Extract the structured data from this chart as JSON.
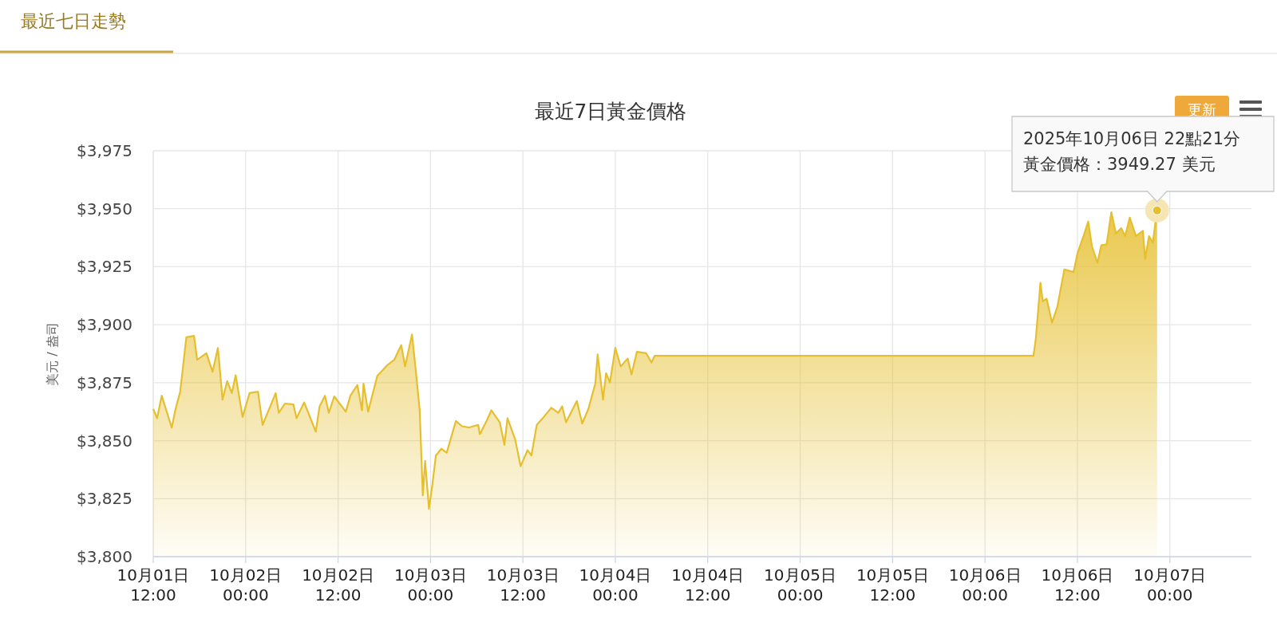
{
  "chart_data": {
    "type": "area",
    "title": "最近7日黃金價格",
    "ylabel": "美元 / 盎司",
    "annotations": [
      "最近七日走勢",
      "更新",
      "2025年10月06日 22點21分",
      "黃金價格：3949.27 美元"
    ],
    "xlim": [
      "2025-10-01T12:00",
      "2025-10-07T10:36"
    ],
    "xticks": [
      {
        "value": "2025-10-01T12:00",
        "label": "10月01日\n12:00"
      },
      {
        "value": "2025-10-02T00:00",
        "label": "10月02日\n00:00"
      },
      {
        "value": "2025-10-02T12:00",
        "label": "10月02日\n12:00"
      },
      {
        "value": "2025-10-03T00:00",
        "label": "10月03日\n00:00"
      },
      {
        "value": "2025-10-03T12:00",
        "label": "10月03日\n12:00"
      },
      {
        "value": "2025-10-04T00:00",
        "label": "10月04日\n00:00"
      },
      {
        "value": "2025-10-04T12:00",
        "label": "10月04日\n12:00"
      },
      {
        "value": "2025-10-05T00:00",
        "label": "10月05日\n00:00"
      },
      {
        "value": "2025-10-05T12:00",
        "label": "10月05日\n12:00"
      },
      {
        "value": "2025-10-06T00:00",
        "label": "10月06日\n00:00"
      },
      {
        "value": "2025-10-06T12:00",
        "label": "10月06日\n12:00"
      },
      {
        "value": "2025-10-07T00:00",
        "label": "10月07日\n00:00"
      }
    ],
    "ylim": [
      3800,
      3975
    ],
    "yticks": [
      {
        "value": 3800,
        "label": "$3,800"
      },
      {
        "value": 3825,
        "label": "$3,825"
      },
      {
        "value": 3850,
        "label": "$3,850"
      },
      {
        "value": 3875,
        "label": "$3,875"
      },
      {
        "value": 3900,
        "label": "$3,900"
      },
      {
        "value": 3925,
        "label": "$3,925"
      },
      {
        "value": 3950,
        "label": "$3,950"
      },
      {
        "value": 3975,
        "label": "$3,975"
      }
    ],
    "grid": true,
    "marker": "none",
    "series": [
      {
        "color": "#e6bf2e",
        "x": [
          "2025-10-01T12:00",
          "2025-10-01T12:30",
          "2025-10-01T13:06",
          "2025-10-01T14:24",
          "2025-10-01T14:54",
          "2025-10-01T15:30",
          "2025-10-01T16:18",
          "2025-10-01T17:18",
          "2025-10-01T17:42",
          "2025-10-01T18:54",
          "2025-10-01T19:42",
          "2025-10-01T20:24",
          "2025-10-01T21:00",
          "2025-10-01T21:36",
          "2025-10-01T22:12",
          "2025-10-01T22:42",
          "2025-10-01T23:36",
          "2025-10-02T00:30",
          "2025-10-02T01:36",
          "2025-10-02T02:12",
          "2025-10-02T03:54",
          "2025-10-02T04:18",
          "2025-10-02T05:06",
          "2025-10-02T06:12",
          "2025-10-02T06:36",
          "2025-10-02T07:36",
          "2025-10-02T09:06",
          "2025-10-02T09:36",
          "2025-10-02T10:18",
          "2025-10-02T10:48",
          "2025-10-02T11:30",
          "2025-10-02T12:12",
          "2025-10-02T13:00",
          "2025-10-02T13:36",
          "2025-10-02T14:30",
          "2025-10-02T15:06",
          "2025-10-02T15:18",
          "2025-10-02T15:54",
          "2025-10-02T17:06",
          "2025-10-02T18:24",
          "2025-10-02T19:18",
          "2025-10-02T20:12",
          "2025-10-02T20:42",
          "2025-10-02T21:36",
          "2025-10-02T22:00",
          "2025-10-02T22:36",
          "2025-10-02T23:00",
          "2025-10-02T23:18",
          "2025-10-02T23:48",
          "2025-10-03T00:12",
          "2025-10-03T00:42",
          "2025-10-03T01:24",
          "2025-10-03T02:06",
          "2025-10-03T03:18",
          "2025-10-03T04:06",
          "2025-10-03T05:00",
          "2025-10-03T06:12",
          "2025-10-03T06:24",
          "2025-10-03T07:12",
          "2025-10-03T07:54",
          "2025-10-03T09:00",
          "2025-10-03T09:36",
          "2025-10-03T10:00",
          "2025-10-03T11:00",
          "2025-10-03T11:42",
          "2025-10-03T12:36",
          "2025-10-03T13:06",
          "2025-10-03T13:48",
          "2025-10-03T14:42",
          "2025-10-03T15:42",
          "2025-10-03T16:36",
          "2025-10-03T17:06",
          "2025-10-03T17:36",
          "2025-10-03T19:00",
          "2025-10-03T19:42",
          "2025-10-03T20:30",
          "2025-10-03T21:24",
          "2025-10-03T21:42",
          "2025-10-03T22:24",
          "2025-10-03T22:48",
          "2025-10-03T23:18",
          "2025-10-04T00:00",
          "2025-10-04T00:42",
          "2025-10-04T01:36",
          "2025-10-04T02:06",
          "2025-10-04T02:48",
          "2025-10-04T04:00",
          "2025-10-04T04:42",
          "2025-10-04T05:06",
          "2025-10-06T06:18",
          "2025-10-06T06:36",
          "2025-10-06T07:12",
          "2025-10-06T07:30",
          "2025-10-06T08:00",
          "2025-10-06T08:42",
          "2025-10-06T09:24",
          "2025-10-06T10:18",
          "2025-10-06T11:30",
          "2025-10-06T12:00",
          "2025-10-06T12:54",
          "2025-10-06T13:24",
          "2025-10-06T13:54",
          "2025-10-06T14:36",
          "2025-10-06T15:06",
          "2025-10-06T15:48",
          "2025-10-06T16:24",
          "2025-10-06T17:00",
          "2025-10-06T17:42",
          "2025-10-06T18:12",
          "2025-10-06T18:48",
          "2025-10-06T19:36",
          "2025-10-06T20:30",
          "2025-10-06T20:48",
          "2025-10-06T21:18",
          "2025-10-06T21:48",
          "2025-10-06T22:12",
          "2025-10-06T22:21"
        ],
        "values": [
          3863.7,
          3859.7,
          3869.4,
          3855.6,
          3863.7,
          3871.1,
          3894.6,
          3895.2,
          3884.9,
          3887.7,
          3879.7,
          3890.0,
          3867.7,
          3875.7,
          3870.5,
          3878.2,
          3860.2,
          3870.5,
          3871.1,
          3856.8,
          3870.5,
          3862.0,
          3866.0,
          3865.6,
          3859.7,
          3866.5,
          3853.9,
          3864.8,
          3869.4,
          3862.0,
          3869.1,
          3866.0,
          3862.5,
          3869.4,
          3874.0,
          3863.1,
          3874.6,
          3862.5,
          3878.0,
          3882.6,
          3884.9,
          3891.2,
          3882.0,
          3895.8,
          3883.2,
          3863.1,
          3826.4,
          3841.3,
          3820.7,
          3829.9,
          3843.6,
          3846.5,
          3844.8,
          3858.5,
          3856.2,
          3855.7,
          3856.8,
          3852.8,
          3857.9,
          3863.1,
          3857.9,
          3848.2,
          3859.7,
          3850.5,
          3839.0,
          3845.9,
          3843.6,
          3856.8,
          3860.2,
          3864.2,
          3862.0,
          3864.8,
          3857.9,
          3867.1,
          3857.4,
          3863.7,
          3874.6,
          3887.2,
          3867.7,
          3879.1,
          3875.1,
          3890.0,
          3882.0,
          3885.4,
          3878.6,
          3888.3,
          3887.7,
          3883.7,
          3886.6,
          3886.6,
          3894.0,
          3918.1,
          3910.1,
          3911.2,
          3900.9,
          3907.8,
          3923.8,
          3922.7,
          3930.7,
          3939.3,
          3944.5,
          3933.6,
          3926.7,
          3934.2,
          3934.7,
          3948.5,
          3939.3,
          3941.6,
          3938.2,
          3946.2,
          3938.2,
          3940.5,
          3928.4,
          3938.2,
          3935.3,
          3946.2,
          3949.27
        ]
      }
    ]
  }
}
